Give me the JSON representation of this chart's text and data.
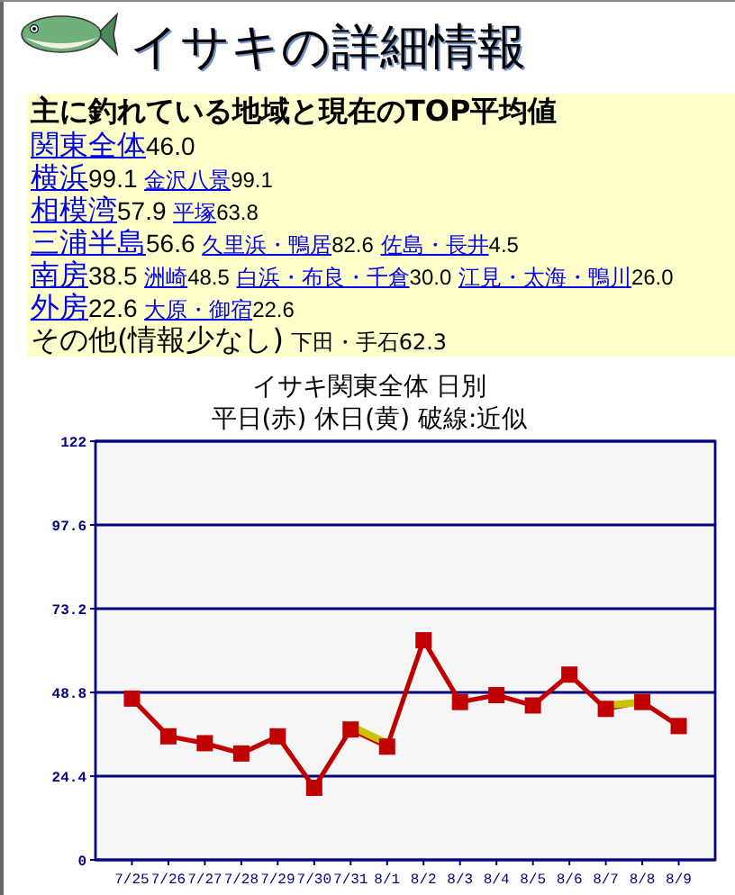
{
  "chart_data": [
    {
      "type": "other",
      "title": "イサキの詳細情報",
      "subtitle": "主に釣れている地域と現在のTOP平均値",
      "annotations": [
        "関東全体46.0",
        "横浜99.1 金沢八景99.1",
        "相模湾57.9 平塚63.8",
        "三浦半島56.6 久里浜・鴨居82.6 佐島・長井4.5",
        "南房38.5 洲崎48.5 白浜・布良・千倉30.0 江見・太海・鴨川26.0",
        "外房22.6 大原・御宿22.6",
        "その他(情報少なし) 下田・手石62.3"
      ]
    },
    {
      "type": "line",
      "title": "イサキ関東全体 日別",
      "subtitle": "平日(赤) 休日(黄) 破線:近似",
      "categories": [
        "7/25",
        "7/26",
        "7/27",
        "7/28",
        "7/29",
        "7/30",
        "7/31",
        "8/1",
        "8/2",
        "8/3",
        "8/4",
        "8/5",
        "8/6",
        "8/7",
        "8/8",
        "8/9"
      ],
      "series": [
        {
          "color": "#c00000",
          "marker": "square",
          "values": [
            47,
            36,
            34,
            31,
            36,
            21,
            38,
            33,
            64,
            46,
            48,
            45,
            54,
            44,
            46,
            39
          ]
        },
        {
          "color": "#c8c400",
          "marker": "none",
          "values": [
            null,
            null,
            null,
            null,
            null,
            null,
            39,
            34,
            null,
            null,
            null,
            null,
            null,
            45,
            46,
            null
          ]
        }
      ],
      "ylim": [
        0,
        122
      ],
      "yticks": [
        0,
        24.4,
        48.8,
        73.2,
        97.6,
        122
      ],
      "grid": "y"
    }
  ]
}
